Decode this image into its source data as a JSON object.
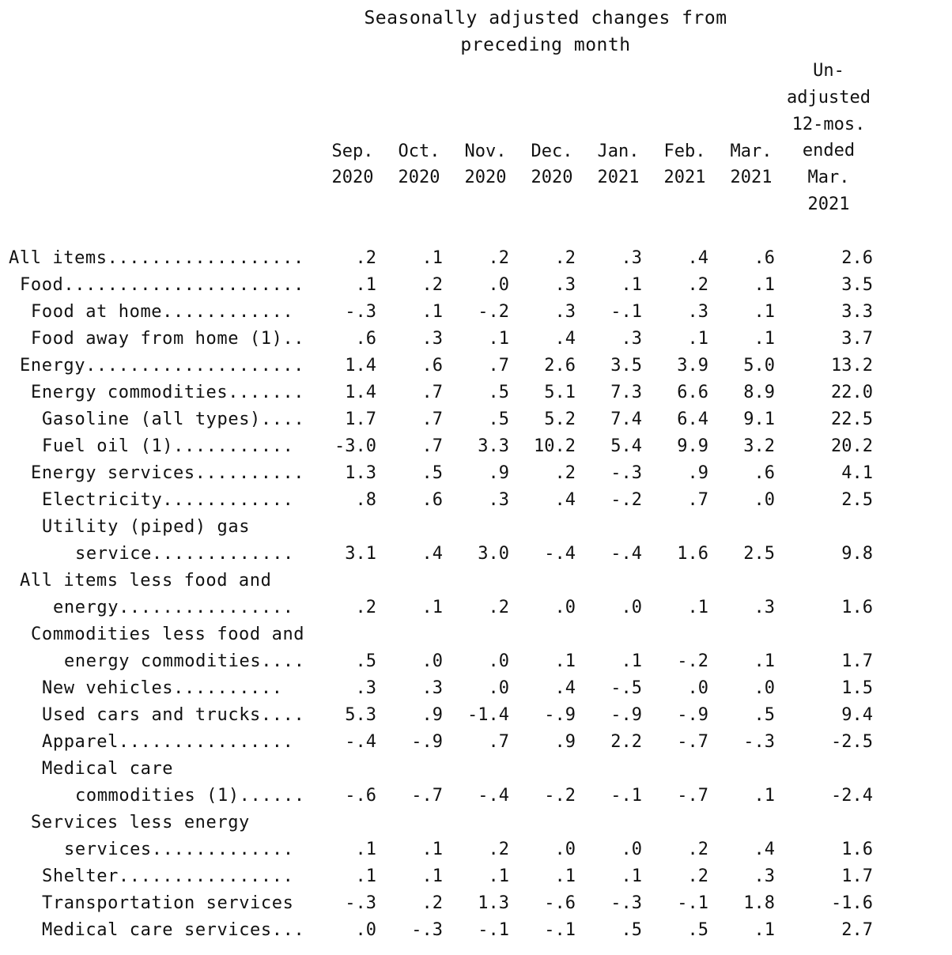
{
  "header": {
    "line1": "Seasonally adjusted changes from",
    "line2": "preceding month"
  },
  "columns": [
    {
      "month": "Sep.",
      "year": "2020"
    },
    {
      "month": "Oct.",
      "year": "2020"
    },
    {
      "month": "Nov.",
      "year": "2020"
    },
    {
      "month": "Dec.",
      "year": "2020"
    },
    {
      "month": "Jan.",
      "year": "2021"
    },
    {
      "month": "Feb.",
      "year": "2021"
    },
    {
      "month": "Mar.",
      "year": "2021"
    }
  ],
  "unadjusted_header": [
    "Un-",
    "adjusted",
    "12-mos.",
    "ended",
    "Mar.",
    "2021"
  ],
  "rows": [
    {
      "label": "All items..................",
      "indent": 0,
      "values": [
        ".2",
        ".1",
        ".2",
        ".2",
        ".3",
        ".4",
        ".6"
      ],
      "unadjusted": "2.6"
    },
    {
      "label": "Food......................",
      "indent": 1,
      "values": [
        ".1",
        ".2",
        ".0",
        ".3",
        ".1",
        ".2",
        ".1"
      ],
      "unadjusted": "3.5"
    },
    {
      "label": "Food at home............",
      "indent": 2,
      "values": [
        "-.3",
        ".1",
        "-.2",
        ".3",
        "-.1",
        ".3",
        ".1"
      ],
      "unadjusted": "3.3"
    },
    {
      "label": "Food away from home (1)..",
      "indent": 2,
      "values": [
        ".6",
        ".3",
        ".1",
        ".4",
        ".3",
        ".1",
        ".1"
      ],
      "unadjusted": "3.7"
    },
    {
      "label": "Energy....................",
      "indent": 1,
      "values": [
        "1.4",
        ".6",
        ".7",
        "2.6",
        "3.5",
        "3.9",
        "5.0"
      ],
      "unadjusted": "13.2"
    },
    {
      "label": "Energy commodities.......",
      "indent": 2,
      "values": [
        "1.4",
        ".7",
        ".5",
        "5.1",
        "7.3",
        "6.6",
        "8.9"
      ],
      "unadjusted": "22.0"
    },
    {
      "label": "Gasoline (all types)....",
      "indent": 3,
      "values": [
        "1.7",
        ".7",
        ".5",
        "5.2",
        "7.4",
        "6.4",
        "9.1"
      ],
      "unadjusted": "22.5"
    },
    {
      "label": "Fuel oil (1)...........",
      "indent": 3,
      "values": [
        "-3.0",
        ".7",
        "3.3",
        "10.2",
        "5.4",
        "9.9",
        "3.2"
      ],
      "unadjusted": "20.2"
    },
    {
      "label": "Energy services..........",
      "indent": 2,
      "values": [
        "1.3",
        ".5",
        ".9",
        ".2",
        "-.3",
        ".9",
        ".6"
      ],
      "unadjusted": "4.1"
    },
    {
      "label": "Electricity............",
      "indent": 3,
      "values": [
        ".8",
        ".6",
        ".3",
        ".4",
        "-.2",
        ".7",
        ".0"
      ],
      "unadjusted": "2.5"
    },
    {
      "label": "Utility (piped) gas",
      "indent": 3,
      "values": [],
      "unadjusted": ""
    },
    {
      "label": "service.............",
      "indent": 6,
      "values": [
        "3.1",
        ".4",
        "3.0",
        "-.4",
        "-.4",
        "1.6",
        "2.5"
      ],
      "unadjusted": "9.8"
    },
    {
      "label": "All items less food and",
      "indent": 1,
      "values": [],
      "unadjusted": ""
    },
    {
      "label": "energy................",
      "indent": 4,
      "values": [
        ".2",
        ".1",
        ".2",
        ".0",
        ".0",
        ".1",
        ".3"
      ],
      "unadjusted": "1.6"
    },
    {
      "label": "Commodities less food and",
      "indent": 2,
      "values": [],
      "unadjusted": ""
    },
    {
      "label": "energy commodities....",
      "indent": 5,
      "values": [
        ".5",
        ".0",
        ".0",
        ".1",
        ".1",
        "-.2",
        ".1"
      ],
      "unadjusted": "1.7"
    },
    {
      "label": "New vehicles..........",
      "indent": 3,
      "values": [
        ".3",
        ".3",
        ".0",
        ".4",
        "-.5",
        ".0",
        ".0"
      ],
      "unadjusted": "1.5"
    },
    {
      "label": "Used cars and trucks....",
      "indent": 3,
      "values": [
        "5.3",
        ".9",
        "-1.4",
        "-.9",
        "-.9",
        "-.9",
        ".5"
      ],
      "unadjusted": "9.4"
    },
    {
      "label": "Apparel................",
      "indent": 3,
      "values": [
        "-.4",
        "-.9",
        ".7",
        ".9",
        "2.2",
        "-.7",
        "-.3"
      ],
      "unadjusted": "-2.5"
    },
    {
      "label": "Medical care",
      "indent": 3,
      "values": [],
      "unadjusted": ""
    },
    {
      "label": "commodities (1)......",
      "indent": 6,
      "values": [
        "-.6",
        "-.7",
        "-.4",
        "-.2",
        "-.1",
        "-.7",
        ".1"
      ],
      "unadjusted": "-2.4"
    },
    {
      "label": "Services less energy",
      "indent": 2,
      "values": [],
      "unadjusted": ""
    },
    {
      "label": "services.............",
      "indent": 5,
      "values": [
        ".1",
        ".1",
        ".2",
        ".0",
        ".0",
        ".2",
        ".4"
      ],
      "unadjusted": "1.6"
    },
    {
      "label": "Shelter................",
      "indent": 3,
      "values": [
        ".1",
        ".1",
        ".1",
        ".1",
        ".1",
        ".2",
        ".3"
      ],
      "unadjusted": "1.7"
    },
    {
      "label": "Transportation services",
      "indent": 3,
      "values": [
        "-.3",
        ".2",
        "1.3",
        "-.6",
        "-.3",
        "-.1",
        "1.8"
      ],
      "unadjusted": "-1.6"
    },
    {
      "label": "Medical care services...",
      "indent": 3,
      "values": [
        ".0",
        "-.3",
        "-.1",
        "-.1",
        ".5",
        ".5",
        ".1"
      ],
      "unadjusted": "2.7"
    }
  ]
}
